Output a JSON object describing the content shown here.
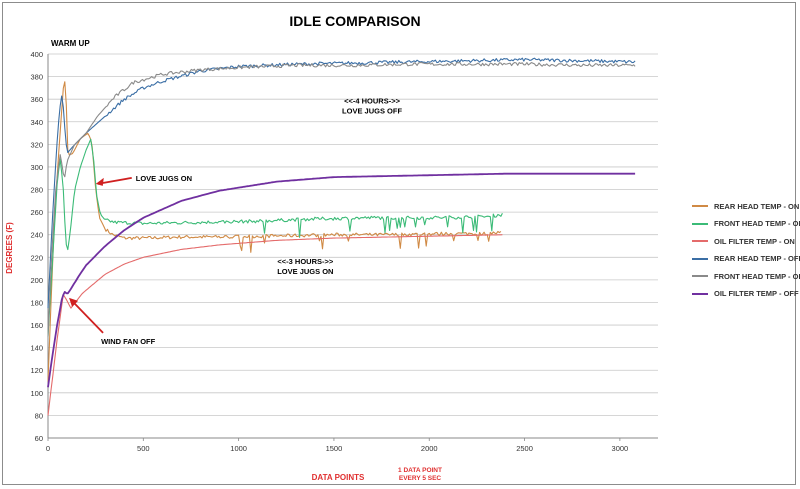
{
  "chart_data": {
    "type": "line",
    "title": "IDLE COMPARISON",
    "xlabel": "DATA POINTS",
    "xlabel_note": "1 DATA POINT EVERY 5 SEC",
    "ylabel": "DEGREES (F)",
    "xlim": [
      0,
      3200
    ],
    "ylim": [
      60,
      400
    ],
    "x_ticks": [
      0,
      500,
      1000,
      1500,
      2000,
      2500,
      3000
    ],
    "y_ticks": [
      60,
      80,
      100,
      120,
      140,
      160,
      180,
      200,
      220,
      240,
      260,
      280,
      300,
      320,
      340,
      360,
      380,
      400
    ],
    "grid": "horizontal",
    "legend_position": "right",
    "annotations": [
      {
        "text": "WARM UP"
      },
      {
        "text": "LOVE JUGS ON",
        "x": 240,
        "y": 285
      },
      {
        "text": "WIND FAN OFF",
        "x": 100,
        "y": 185
      },
      {
        "lines": [
          "<<-4 HOURS->>",
          "LOVE JUGS OFF"
        ],
        "x": 1700,
        "y": 356
      },
      {
        "lines": [
          "<<-3 HOURS->>",
          "LOVE JUGS ON"
        ],
        "x": 1350,
        "y": 214
      }
    ],
    "series": [
      {
        "name": "REAR HEAD TEMP - ON",
        "color": "#d08a45",
        "points": [
          [
            0,
            110
          ],
          [
            30,
            240
          ],
          [
            55,
            310
          ],
          [
            70,
            345
          ],
          [
            85,
            382
          ],
          [
            95,
            360
          ],
          [
            105,
            310
          ],
          [
            130,
            312
          ],
          [
            170,
            325
          ],
          [
            210,
            330
          ],
          [
            230,
            322
          ],
          [
            250,
            280
          ],
          [
            270,
            255
          ],
          [
            300,
            245
          ],
          [
            340,
            240
          ],
          [
            400,
            237
          ],
          [
            500,
            237
          ],
          [
            700,
            238
          ],
          [
            900,
            238
          ],
          [
            1200,
            239
          ],
          [
            1500,
            240
          ],
          [
            1800,
            240
          ],
          [
            2100,
            241
          ],
          [
            2300,
            241
          ],
          [
            2380,
            242
          ]
        ]
      },
      {
        "name": "FRONT HEAD TEMP - ON",
        "color": "#3bbb77",
        "points": [
          [
            0,
            150
          ],
          [
            30,
            235
          ],
          [
            50,
            290
          ],
          [
            65,
            308
          ],
          [
            80,
            280
          ],
          [
            90,
            245
          ],
          [
            100,
            222
          ],
          [
            115,
            240
          ],
          [
            140,
            280
          ],
          [
            170,
            300
          ],
          [
            200,
            315
          ],
          [
            225,
            325
          ],
          [
            240,
            305
          ],
          [
            255,
            275
          ],
          [
            275,
            258
          ],
          [
            300,
            253
          ],
          [
            350,
            251
          ],
          [
            500,
            250
          ],
          [
            800,
            251
          ],
          [
            1100,
            252
          ],
          [
            1400,
            254
          ],
          [
            1700,
            255
          ],
          [
            2000,
            255
          ],
          [
            2300,
            256
          ],
          [
            2390,
            258
          ]
        ]
      },
      {
        "name": "OIL FILTER TEMP - ON",
        "color": "#e46b6b",
        "points": [
          [
            0,
            80
          ],
          [
            25,
            115
          ],
          [
            50,
            150
          ],
          [
            80,
            187
          ],
          [
            95,
            183
          ],
          [
            120,
            175
          ],
          [
            180,
            188
          ],
          [
            250,
            198
          ],
          [
            300,
            205
          ],
          [
            400,
            214
          ],
          [
            500,
            220
          ],
          [
            700,
            227
          ],
          [
            900,
            231
          ],
          [
            1200,
            235
          ],
          [
            1500,
            237
          ],
          [
            1800,
            238
          ],
          [
            2100,
            239
          ],
          [
            2390,
            240
          ]
        ]
      },
      {
        "name": "REAR HEAD TEMP - OFF",
        "color": "#3a6ea5",
        "points": [
          [
            0,
            175
          ],
          [
            25,
            260
          ],
          [
            45,
            315
          ],
          [
            60,
            350
          ],
          [
            75,
            366
          ],
          [
            85,
            340
          ],
          [
            100,
            312
          ],
          [
            130,
            318
          ],
          [
            200,
            330
          ],
          [
            300,
            345
          ],
          [
            400,
            360
          ],
          [
            500,
            370
          ],
          [
            600,
            376
          ],
          [
            800,
            385
          ],
          [
            1000,
            389
          ],
          [
            1300,
            391
          ],
          [
            1600,
            392
          ],
          [
            1900,
            393
          ],
          [
            2200,
            394
          ],
          [
            2500,
            395
          ],
          [
            2800,
            394
          ],
          [
            3080,
            393
          ]
        ]
      },
      {
        "name": "FRONT HEAD TEMP - OFF",
        "color": "#8a8a8a",
        "points": [
          [
            0,
            150
          ],
          [
            20,
            225
          ],
          [
            40,
            278
          ],
          [
            55,
            300
          ],
          [
            65,
            312
          ],
          [
            75,
            300
          ],
          [
            85,
            288
          ],
          [
            100,
            305
          ],
          [
            140,
            320
          ],
          [
            200,
            330
          ],
          [
            260,
            345
          ],
          [
            350,
            362
          ],
          [
            450,
            375
          ],
          [
            600,
            382
          ],
          [
            800,
            386
          ],
          [
            1000,
            388
          ],
          [
            1300,
            390
          ],
          [
            1600,
            390
          ],
          [
            1900,
            391
          ],
          [
            2200,
            391
          ],
          [
            2500,
            391
          ],
          [
            2800,
            390
          ],
          [
            3080,
            390
          ]
        ]
      },
      {
        "name": "OIL FILTER TEMP - OFF",
        "color": "#7030a0",
        "points": [
          [
            0,
            105
          ],
          [
            25,
            135
          ],
          [
            50,
            162
          ],
          [
            75,
            185
          ],
          [
            90,
            190
          ],
          [
            100,
            187
          ],
          [
            120,
            192
          ],
          [
            160,
            203
          ],
          [
            200,
            213
          ],
          [
            300,
            230
          ],
          [
            400,
            244
          ],
          [
            500,
            255
          ],
          [
            700,
            270
          ],
          [
            900,
            279
          ],
          [
            1200,
            287
          ],
          [
            1500,
            291
          ],
          [
            1800,
            292
          ],
          [
            2100,
            293
          ],
          [
            2400,
            294
          ],
          [
            2700,
            294
          ],
          [
            3080,
            294
          ]
        ]
      }
    ]
  }
}
